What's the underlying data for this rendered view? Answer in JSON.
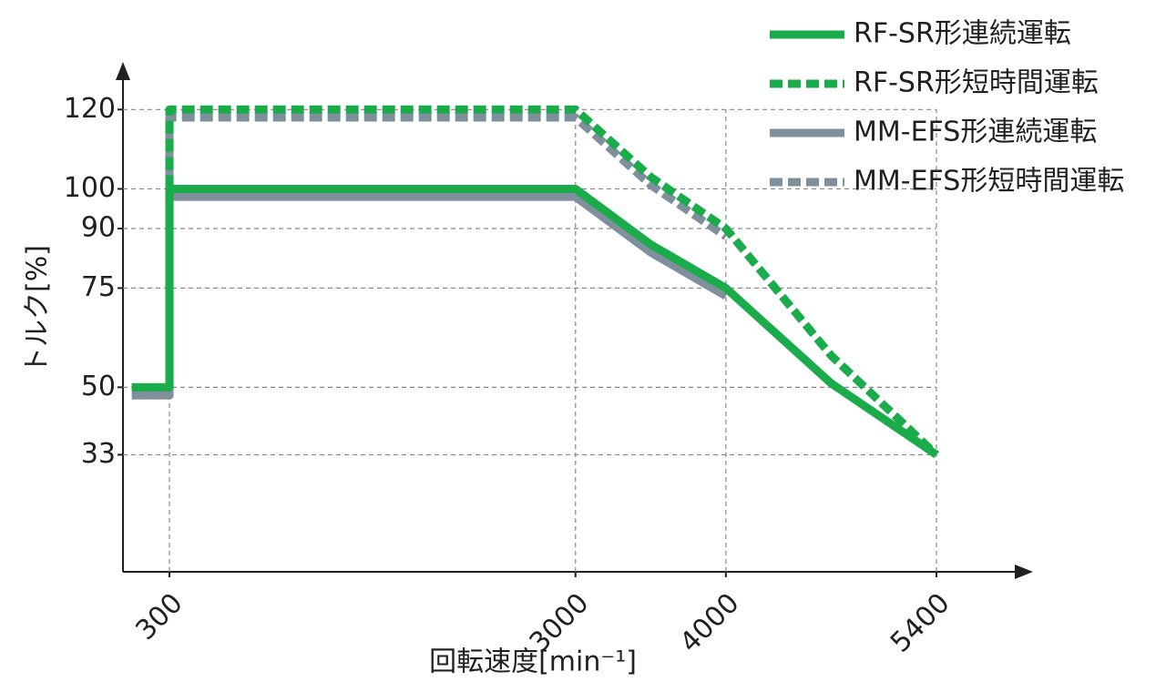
{
  "chart_data": {
    "type": "line",
    "ylabel": "トルク[%]",
    "xlabel": "回転速度[min⁻¹]",
    "xlim": [
      -9,
      6018
    ],
    "xticks": [
      300,
      3000,
      4000,
      5400
    ],
    "ylim": [
      3.5,
      132
    ],
    "yticks": [
      33,
      50,
      75,
      90,
      100,
      120
    ],
    "grid": true,
    "legend": "top-right",
    "series": [
      {
        "name": "MM-EFS形短時間運転",
        "color": "#7f8f9c",
        "dashed": true,
        "x": [
          50,
          300,
          300,
          3000,
          3500,
          4000
        ],
        "values": [
          48,
          48,
          118,
          118,
          101,
          88
        ]
      },
      {
        "name": "MM-EFS形連続運転",
        "color": "#7f8f9c",
        "dashed": false,
        "x": [
          50,
          300,
          300,
          3000,
          3500,
          4000
        ],
        "values": [
          48,
          48,
          98,
          98,
          84,
          73
        ]
      },
      {
        "name": "RF-SR形短時間運転",
        "color": "#1aab4a",
        "dashed": true,
        "x": [
          50,
          300,
          300,
          3000,
          3500,
          4000,
          4700,
          5400
        ],
        "values": [
          50,
          50,
          120,
          120,
          103,
          90,
          58,
          33
        ]
      },
      {
        "name": "RF-SR形連続運転",
        "color": "#1aab4a",
        "dashed": false,
        "x": [
          50,
          300,
          300,
          3000,
          3500,
          4000,
          4700,
          5400
        ],
        "values": [
          50,
          50,
          100,
          100,
          86,
          75,
          51,
          33
        ]
      }
    ]
  }
}
